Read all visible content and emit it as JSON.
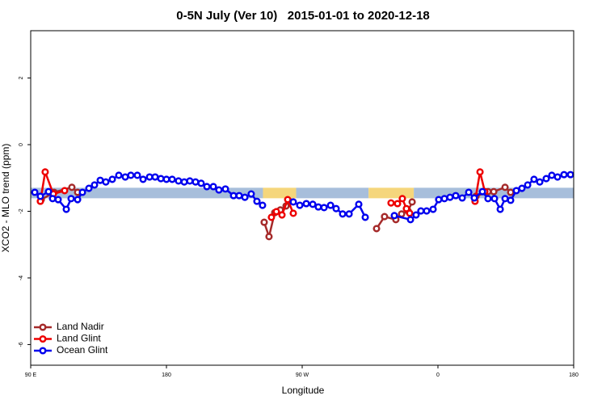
{
  "chart_data": {
    "type": "line",
    "title": "0-5N July (Ver 10)   2015-01-01 to 2020-12-18",
    "x_label": "Longitude",
    "y_label": "XCO2 - MLO trend (ppm)",
    "xlim": [
      90,
      450
    ],
    "ylim": [
      -6.62,
      3.42
    ],
    "xticks": [
      {
        "value": 90,
        "label": "90 E"
      },
      180,
      {
        "value": 270,
        "label": "90 W"
      },
      {
        "value": 360,
        "label": "0"
      },
      {
        "value": 450,
        "label": "180"
      }
    ],
    "yticks": [
      -6,
      -4,
      -2,
      0,
      2
    ],
    "legend": "bottom-left",
    "band": {
      "value": -1.45,
      "segments": [
        {
          "x": [
            90,
            244
          ],
          "color": "#a7bedb"
        },
        {
          "x": [
            244,
            266
          ],
          "color": "#f5d67c"
        },
        {
          "x": [
            266,
            314
          ],
          "color": "#a7bedb"
        },
        {
          "x": [
            314,
            344
          ],
          "color": "#f5d67c"
        },
        {
          "x": [
            344,
            450
          ],
          "color": "#a7bedb"
        }
      ]
    },
    "series": [
      {
        "name": "Land Nadir",
        "color": "#a52a2a",
        "x": [
          97.0,
          105.5,
          117.3,
          121.1,
          null,
          244.8,
          248.0,
          251.8,
          255.5,
          259.3,
          261.4,
          null,
          319.3,
          324.6,
          332.1,
          335.9,
          340.2,
          342.9,
          null,
          385.2,
          393.2,
          397.0,
          404.5,
          408.2
        ],
        "values": [
          -1.65,
          -1.43,
          -1.28,
          -1.43,
          null,
          -2.33,
          -2.76,
          -2.04,
          -1.96,
          -1.84,
          -1.7,
          null,
          -2.52,
          -2.16,
          -2.25,
          -2.08,
          -1.99,
          -1.72,
          null,
          -1.55,
          -1.41,
          -1.41,
          -1.28,
          -1.43
        ]
      },
      {
        "name": "Land Glint",
        "color": "#ee0000",
        "x": [
          96.4,
          99.6,
          105.0,
          112.5,
          null,
          249.6,
          252.9,
          256.6,
          260.4,
          264.1,
          null,
          328.9,
          333.2,
          336.4,
          339.1,
          341.3,
          null,
          384.6,
          387.9,
          391.1
        ],
        "values": [
          -1.7,
          -0.82,
          -1.48,
          -1.38,
          null,
          -2.18,
          -2.01,
          -2.11,
          -1.65,
          -2.06,
          null,
          -1.75,
          -1.77,
          -1.62,
          -1.92,
          -2.06,
          null,
          -1.7,
          -0.82,
          -1.41
        ]
      },
      {
        "name": "Ocean Glint",
        "color": "#0000ee",
        "x": [
          92.7,
          96.4,
          101.8,
          104.5,
          108.2,
          113.6,
          116.8,
          121.1,
          124.3,
          128.6,
          132.3,
          136.1,
          139.8,
          144.1,
          148.4,
          152.7,
          156.4,
          160.7,
          164.5,
          168.8,
          172.5,
          176.3,
          180.0,
          183.8,
          188.0,
          191.8,
          195.5,
          199.3,
          203.0,
          206.8,
          211.1,
          214.8,
          219.1,
          224.5,
          228.2,
          232.0,
          236.2,
          240.0,
          243.7,
          null,
          264.1,
          268.4,
          272.7,
          277.0,
          280.7,
          284.5,
          288.8,
          292.5,
          296.8,
          301.1,
          307.5,
          311.8,
          null,
          331.1,
          341.8,
          345.5,
          348.7,
          352.5,
          356.8,
          360.5,
          364.3,
          368.0,
          371.8,
          376.1,
          380.4,
          384.1,
          389.5,
          393.2,
          397.5,
          401.3,
          404.5,
          408.2,
          412.0,
          415.7,
          419.5,
          423.7,
          427.5,
          431.8,
          435.5,
          439.3,
          443.6,
          447.9
        ],
        "values": [
          -1.43,
          -1.55,
          -1.41,
          -1.62,
          -1.65,
          -1.94,
          -1.62,
          -1.65,
          -1.43,
          -1.31,
          -1.21,
          -1.07,
          -1.12,
          -1.04,
          -0.92,
          -0.97,
          -0.92,
          -0.92,
          -1.04,
          -0.97,
          -0.97,
          -1.02,
          -1.04,
          -1.04,
          -1.09,
          -1.12,
          -1.09,
          -1.12,
          -1.16,
          -1.26,
          -1.26,
          -1.36,
          -1.33,
          -1.53,
          -1.53,
          -1.58,
          -1.48,
          -1.7,
          -1.82,
          null,
          -1.72,
          -1.82,
          -1.77,
          -1.79,
          -1.87,
          -1.89,
          -1.82,
          -1.92,
          -2.08,
          -2.08,
          -1.79,
          -2.18,
          null,
          -2.13,
          -2.25,
          -2.11,
          -1.99,
          -1.99,
          -1.94,
          -1.65,
          -1.62,
          -1.58,
          -1.53,
          -1.6,
          -1.43,
          -1.6,
          -1.41,
          -1.62,
          -1.62,
          -1.94,
          -1.62,
          -1.67,
          -1.38,
          -1.31,
          -1.21,
          -1.04,
          -1.12,
          -1.02,
          -0.92,
          -0.97,
          -0.9,
          -0.9
        ]
      }
    ]
  }
}
